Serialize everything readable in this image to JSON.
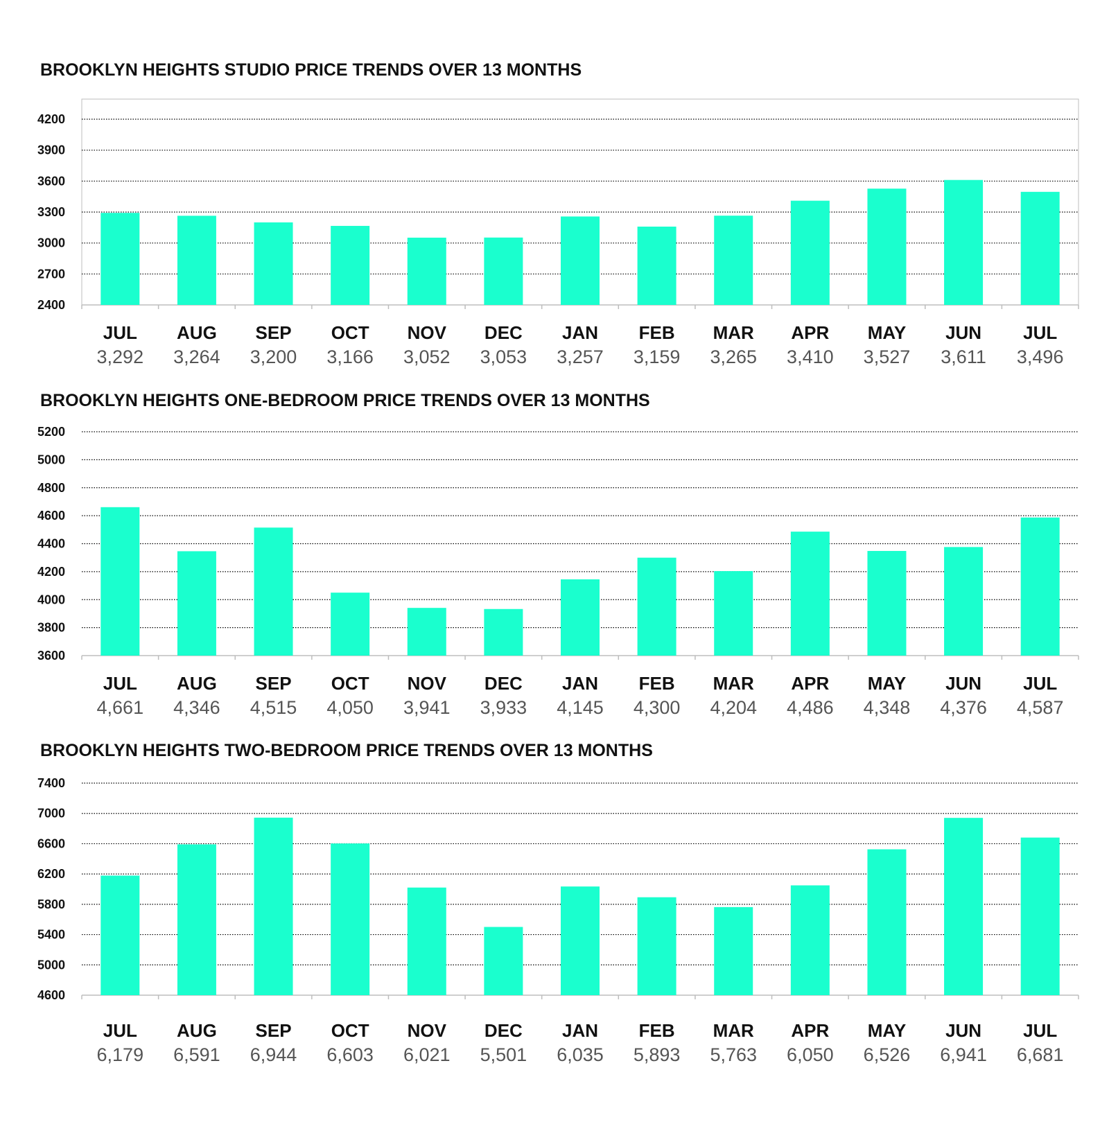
{
  "style": {
    "bar_color": "#1affce",
    "grid_color": "#000000",
    "axis_color": "#bdbdbd"
  },
  "chart_data": [
    {
      "type": "bar",
      "title": "BROOKLYN HEIGHTS STUDIO PRICE TRENDS OVER 13 MONTHS",
      "categories": [
        "JUL",
        "AUG",
        "SEP",
        "OCT",
        "NOV",
        "DEC",
        "JAN",
        "FEB",
        "MAR",
        "APR",
        "MAY",
        "JUN",
        "JUL"
      ],
      "values": [
        3292,
        3264,
        3200,
        3166,
        3052,
        3053,
        3257,
        3159,
        3265,
        3410,
        3527,
        3611,
        3496
      ],
      "value_labels": [
        "3,292",
        "3,264",
        "3,200",
        "3,166",
        "3,052",
        "3,053",
        "3,257",
        "3,159",
        "3,265",
        "3,410",
        "3,527",
        "3,611",
        "3,496"
      ],
      "ylim": [
        2400,
        4200
      ],
      "yticks": [
        2400,
        2700,
        3000,
        3300,
        3600,
        3900,
        4200
      ],
      "grid": true,
      "xlabel": "",
      "ylabel": ""
    },
    {
      "type": "bar",
      "title": "BROOKLYN HEIGHTS ONE-BEDROOM PRICE TRENDS OVER 13 MONTHS",
      "categories": [
        "JUL",
        "AUG",
        "SEP",
        "OCT",
        "NOV",
        "DEC",
        "JAN",
        "FEB",
        "MAR",
        "APR",
        "MAY",
        "JUN",
        "JUL"
      ],
      "values": [
        4661,
        4346,
        4515,
        4050,
        3941,
        3933,
        4145,
        4300,
        4204,
        4486,
        4348,
        4376,
        4587
      ],
      "value_labels": [
        "4,661",
        "4,346",
        "4,515",
        "4,050",
        "3,941",
        "3,933",
        "4,145",
        "4,300",
        "4,204",
        "4,486",
        "4,348",
        "4,376",
        "4,587"
      ],
      "ylim": [
        3600,
        5200
      ],
      "yticks": [
        3600,
        3800,
        4000,
        4200,
        4400,
        4600,
        4800,
        5000,
        5200
      ],
      "grid": true,
      "xlabel": "",
      "ylabel": ""
    },
    {
      "type": "bar",
      "title": "BROOKLYN HEIGHTS TWO-BEDROOM PRICE TRENDS OVER 13 MONTHS",
      "categories": [
        "JUL",
        "AUG",
        "SEP",
        "OCT",
        "NOV",
        "DEC",
        "JAN",
        "FEB",
        "MAR",
        "APR",
        "MAY",
        "JUN",
        "JUL"
      ],
      "values": [
        6179,
        6591,
        6944,
        6603,
        6021,
        5501,
        6035,
        5893,
        5763,
        6050,
        6526,
        6941,
        6681
      ],
      "value_labels": [
        "6,179",
        "6,591",
        "6,944",
        "6,603",
        "6,021",
        "5,501",
        "6,035",
        "5,893",
        "5,763",
        "6,050",
        "6,526",
        "6,941",
        "6,681"
      ],
      "ylim": [
        4600,
        7400
      ],
      "yticks": [
        4600,
        5000,
        5400,
        5800,
        6200,
        6600,
        7000,
        7400
      ],
      "grid": true,
      "xlabel": "",
      "ylabel": ""
    }
  ]
}
